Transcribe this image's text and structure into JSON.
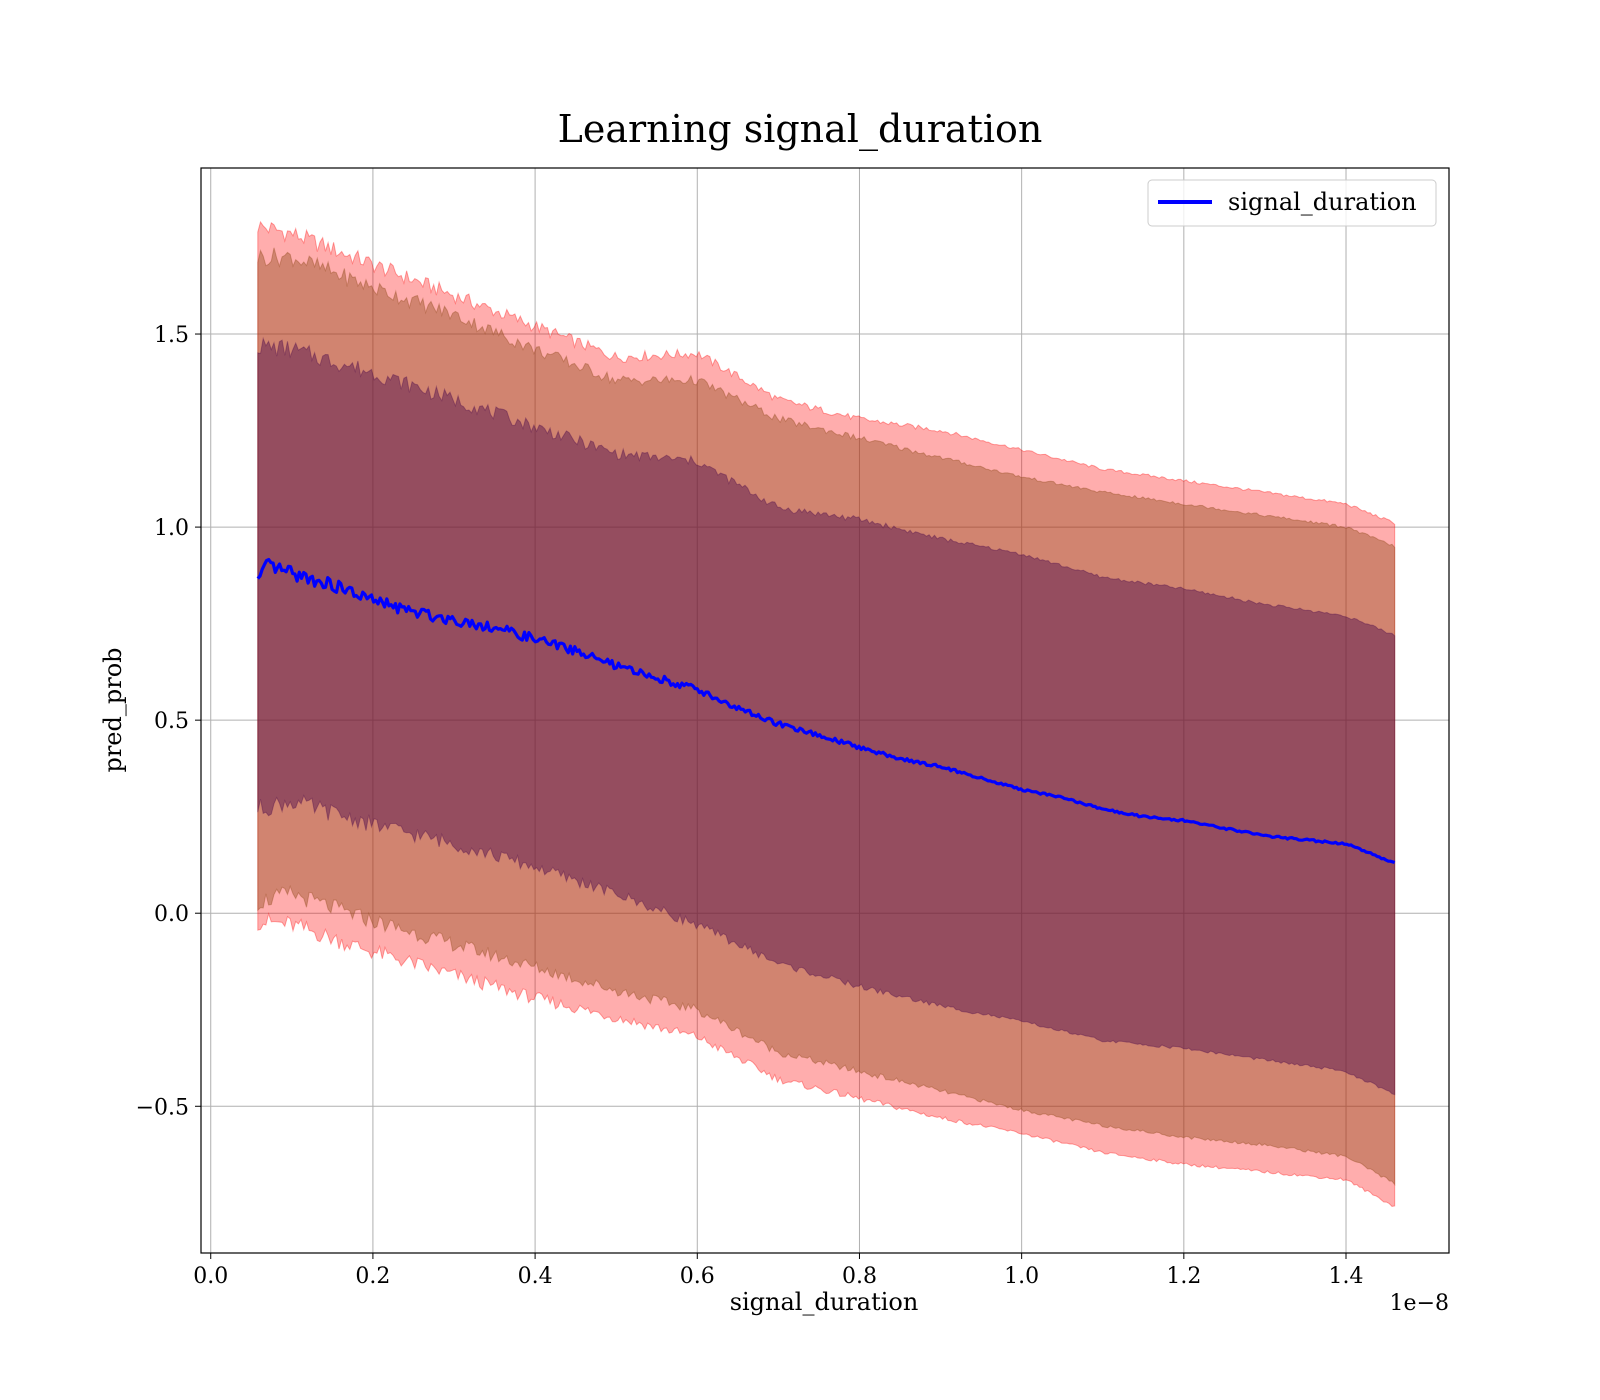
{
  "chart_data": {
    "type": "area",
    "title": "Learning signal_duration",
    "xlabel": "signal_duration",
    "ylabel": "pred_prob",
    "x_offset_label": "1e−8",
    "xlim": [
      -0.012,
      1.527
    ],
    "ylim": [
      -0.88,
      1.93
    ],
    "xticks": [
      0.0,
      0.2,
      0.4,
      0.6,
      0.8,
      1.0,
      1.2,
      1.4
    ],
    "xtick_labels": [
      "0.0",
      "0.2",
      "0.4",
      "0.6",
      "0.8",
      "1.0",
      "1.2",
      "1.4"
    ],
    "yticks": [
      -0.5,
      0.0,
      0.5,
      1.0,
      1.5
    ],
    "ytick_labels": [
      "−0.5",
      "0.0",
      "0.5",
      "1.0",
      "1.5"
    ],
    "grid": true,
    "legend": {
      "position": "top-right",
      "entries": [
        "signal_duration"
      ]
    },
    "colors": {
      "line": "#0000ff",
      "band_outer": "#ff0000",
      "band_middle": "#8b4513",
      "band_inner": "#4b0a4b"
    },
    "series": [
      {
        "name": "signal_duration",
        "x": [
          0.058,
          0.07,
          0.1,
          0.15,
          0.2,
          0.25,
          0.3,
          0.35,
          0.4,
          0.45,
          0.5,
          0.55,
          0.6,
          0.65,
          0.7,
          0.75,
          0.8,
          0.85,
          0.9,
          0.95,
          1.0,
          1.05,
          1.1,
          1.15,
          1.2,
          1.25,
          1.3,
          1.35,
          1.4,
          1.46
        ],
        "y": [
          0.86,
          0.9,
          0.88,
          0.85,
          0.81,
          0.78,
          0.76,
          0.74,
          0.71,
          0.68,
          0.64,
          0.61,
          0.58,
          0.53,
          0.49,
          0.46,
          0.43,
          0.4,
          0.38,
          0.35,
          0.32,
          0.3,
          0.27,
          0.25,
          0.24,
          0.22,
          0.2,
          0.19,
          0.18,
          0.13
        ]
      }
    ],
    "bands": [
      {
        "level": "outer",
        "x": [
          0.058,
          0.1,
          0.2,
          0.3,
          0.4,
          0.5,
          0.6,
          0.7,
          0.8,
          0.9,
          1.0,
          1.1,
          1.2,
          1.3,
          1.4,
          1.46
        ],
        "upper": [
          1.78,
          1.76,
          1.68,
          1.6,
          1.52,
          1.44,
          1.45,
          1.33,
          1.28,
          1.25,
          1.2,
          1.15,
          1.12,
          1.09,
          1.06,
          1.01
        ],
        "lower": [
          -0.02,
          -0.03,
          -0.1,
          -0.16,
          -0.22,
          -0.27,
          -0.32,
          -0.43,
          -0.48,
          -0.53,
          -0.57,
          -0.62,
          -0.65,
          -0.67,
          -0.69,
          -0.76
        ]
      },
      {
        "level": "middle",
        "x": [
          0.058,
          0.1,
          0.2,
          0.3,
          0.4,
          0.5,
          0.6,
          0.7,
          0.8,
          0.9,
          1.0,
          1.1,
          1.2,
          1.3,
          1.4,
          1.46
        ],
        "upper": [
          1.7,
          1.7,
          1.62,
          1.55,
          1.46,
          1.38,
          1.38,
          1.28,
          1.23,
          1.18,
          1.13,
          1.09,
          1.06,
          1.03,
          1.0,
          0.95
        ],
        "lower": [
          0.03,
          0.05,
          -0.02,
          -0.08,
          -0.14,
          -0.2,
          -0.25,
          -0.36,
          -0.41,
          -0.46,
          -0.51,
          -0.55,
          -0.58,
          -0.6,
          -0.63,
          -0.7
        ]
      },
      {
        "level": "inner",
        "x": [
          0.058,
          0.1,
          0.2,
          0.3,
          0.4,
          0.5,
          0.6,
          0.7,
          0.8,
          0.9,
          1.0,
          1.1,
          1.2,
          1.3,
          1.4,
          1.46
        ],
        "upper": [
          1.47,
          1.46,
          1.4,
          1.33,
          1.26,
          1.19,
          1.17,
          1.05,
          1.02,
          0.97,
          0.93,
          0.87,
          0.84,
          0.8,
          0.77,
          0.72
        ],
        "lower": [
          0.27,
          0.29,
          0.23,
          0.18,
          0.12,
          0.05,
          -0.03,
          -0.13,
          -0.19,
          -0.24,
          -0.28,
          -0.33,
          -0.35,
          -0.38,
          -0.41,
          -0.47
        ]
      }
    ]
  }
}
